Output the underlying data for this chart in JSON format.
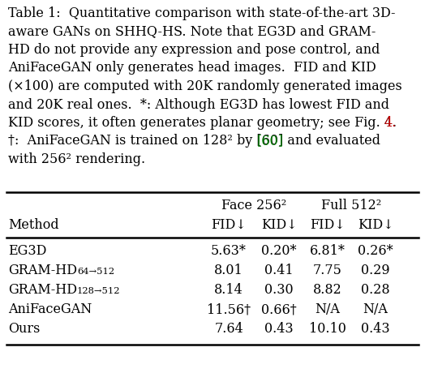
{
  "caption_lines": [
    [
      "Table 1:  Quantitative comparison with state-of-the-art 3D-",
      "black"
    ],
    [
      "aware GANs on SHHQ-HS. Note that EG3D and GRAM-",
      "black"
    ],
    [
      "HD do not provide any expression and pose control, and",
      "black"
    ],
    [
      "AniFaceGAN only generates head images.  FID and KID",
      "black"
    ],
    [
      "(×100) are computed with 20K randomly generated images",
      "black"
    ],
    [
      "and 20K real ones.  *: Although EG3D has lowest FID and",
      "black"
    ],
    [
      "KID scores, it often generates planar geometry; see Fig. 4.",
      "black"
    ],
    [
      "†:  AniFaceGAN is trained on 128² by [60] and evaluated",
      "black"
    ],
    [
      "with 256² rendering.",
      "black"
    ]
  ],
  "line6_prefix": "KID scores, it often generates planar geometry; see Fig. ",
  "line6_colored": "4.",
  "line6_color": "#cc0000",
  "line7_prefix": "†:  AniFaceGAN is trained on 128² by ",
  "line7_colored": "[60]",
  "line7_suffix": " and evaluated",
  "line7_color": "#008000",
  "col_headers_top": [
    "Face 256²",
    "Full 512²"
  ],
  "col_headers_sub": [
    "Method",
    "FID↓",
    "KID↓",
    "FID↓",
    "KID↓"
  ],
  "rows": [
    [
      "EG3D",
      "",
      "5.63*",
      "0.20*",
      "6.81*",
      "0.26*"
    ],
    [
      "GRAM-HD",
      "64→512",
      "8.01",
      "0.41",
      "7.75",
      "0.29"
    ],
    [
      "GRAM-HD",
      "128→512",
      "8.14",
      "0.30",
      "8.82",
      "0.28"
    ],
    [
      "AniFaceGAN",
      "†",
      "11.56†",
      "0.66†",
      "N/A",
      "N/A"
    ],
    [
      "Ours",
      "",
      "7.64",
      "0.43",
      "10.10",
      "0.43"
    ]
  ],
  "bg_color": "#ffffff",
  "text_color": "#000000",
  "fig4_color": "#cc0000",
  "ref60_color": "#008000",
  "caption_fontsize": 11.5,
  "table_fontsize": 11.5
}
